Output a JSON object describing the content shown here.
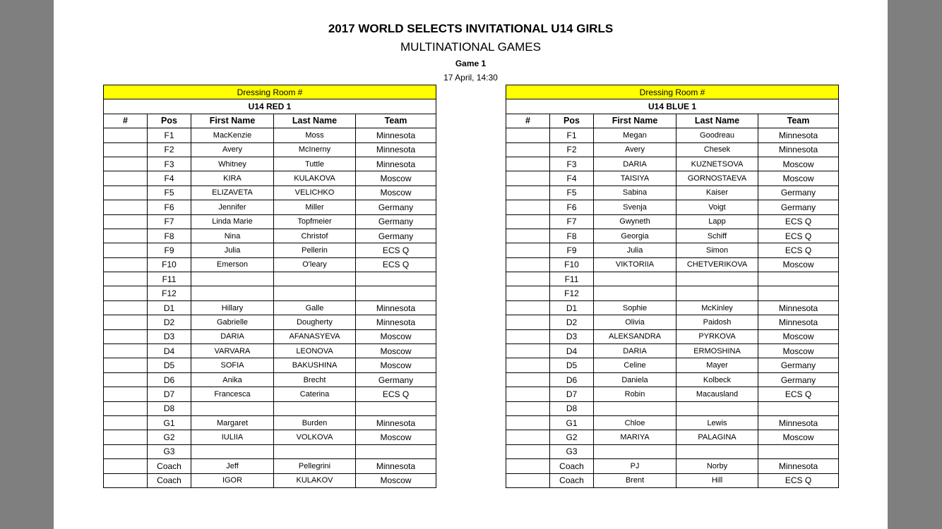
{
  "header": {
    "title": "2017 WORLD SELECTS INVITATIONAL U14 GIRLS",
    "subtitle": "MULTINATIONAL GAMES",
    "game": "Game 1",
    "datetime": "17 April, 14:30"
  },
  "columns": [
    "#",
    "Pos",
    "First Name",
    "Last Name",
    "Team"
  ],
  "rosters": [
    {
      "dressing_room": "Dressing Room #",
      "team": "U14 RED 1",
      "rows": [
        [
          "",
          "F1",
          "MacKenzie",
          "Moss",
          "Minnesota"
        ],
        [
          "",
          "F2",
          "Avery",
          "McInerny",
          "Minnesota"
        ],
        [
          "",
          "F3",
          "Whitney",
          "Tuttle",
          "Minnesota"
        ],
        [
          "",
          "F4",
          "KIRA",
          "KULAKOVA",
          "Moscow"
        ],
        [
          "",
          "F5",
          "ELIZAVETA",
          "VELICHKO",
          "Moscow"
        ],
        [
          "",
          "F6",
          "Jennifer",
          "Miller",
          "Germany"
        ],
        [
          "",
          "F7",
          "Linda Marie",
          "Topfmeier",
          "Germany"
        ],
        [
          "",
          "F8",
          "Nina",
          "Christof",
          "Germany"
        ],
        [
          "",
          "F9",
          "Julia",
          "Pellerin",
          "ECS Q"
        ],
        [
          "",
          "F10",
          "Emerson",
          "O'leary",
          "ECS Q"
        ],
        [
          "",
          "F11",
          "",
          "",
          ""
        ],
        [
          "",
          "F12",
          "",
          "",
          ""
        ],
        [
          "",
          "D1",
          "Hillary",
          "Galle",
          "Minnesota"
        ],
        [
          "",
          "D2",
          "Gabrielle",
          "Dougherty",
          "Minnesota"
        ],
        [
          "",
          "D3",
          "DARIA",
          "AFANASYEVA",
          "Moscow"
        ],
        [
          "",
          "D4",
          "VARVARA",
          "LEONOVA",
          "Moscow"
        ],
        [
          "",
          "D5",
          "SOFIA",
          "BAKUSHINA",
          "Moscow"
        ],
        [
          "",
          "D6",
          "Anika",
          "Brecht",
          "Germany"
        ],
        [
          "",
          "D7",
          "Francesca",
          "Caterina",
          "ECS Q"
        ],
        [
          "",
          "D8",
          "",
          "",
          ""
        ],
        [
          "",
          "G1",
          "Margaret",
          "Burden",
          "Minnesota"
        ],
        [
          "",
          "G2",
          "IULIIA",
          "VOLKOVA",
          "Moscow"
        ],
        [
          "",
          "G3",
          "",
          "",
          ""
        ],
        [
          "",
          "Coach",
          "Jeff",
          "Pellegrini",
          "Minnesota"
        ],
        [
          "",
          "Coach",
          "IGOR",
          "KULAKOV",
          "Moscow"
        ]
      ]
    },
    {
      "dressing_room": "Dressing Room #",
      "team": "U14 BLUE 1",
      "rows": [
        [
          "",
          "F1",
          "Megan",
          "Goodreau",
          "Minnesota"
        ],
        [
          "",
          "F2",
          "Avery",
          "Chesek",
          "Minnesota"
        ],
        [
          "",
          "F3",
          "DARIA",
          "KUZNETSOVA",
          "Moscow"
        ],
        [
          "",
          "F4",
          "TAISIYA",
          "GORNOSTAEVA",
          "Moscow"
        ],
        [
          "",
          "F5",
          "Sabina",
          "Kaiser",
          "Germany"
        ],
        [
          "",
          "F6",
          "Svenja",
          "Voigt",
          "Germany"
        ],
        [
          "",
          "F7",
          "Gwyneth",
          "Lapp",
          "ECS Q"
        ],
        [
          "",
          "F8",
          "Georgia",
          "Schiff",
          "ECS Q"
        ],
        [
          "",
          "F9",
          "Julia",
          "Simon",
          "ECS Q"
        ],
        [
          "",
          "F10",
          "VIKTORIIA",
          "CHETVERIKOVA",
          "Moscow"
        ],
        [
          "",
          "F11",
          "",
          "",
          ""
        ],
        [
          "",
          "F12",
          "",
          "",
          ""
        ],
        [
          "",
          "D1",
          "Sophie",
          "McKinley",
          "Minnesota"
        ],
        [
          "",
          "D2",
          "Olivia",
          "Paidosh",
          "Minnesota"
        ],
        [
          "",
          "D3",
          "ALEKSANDRA",
          "PYRKOVA",
          "Moscow"
        ],
        [
          "",
          "D4",
          "DARIA",
          "ERMOSHINA",
          "Moscow"
        ],
        [
          "",
          "D5",
          "Celine",
          "Mayer",
          "Germany"
        ],
        [
          "",
          "D6",
          "Daniela",
          "Kolbeck",
          "Germany"
        ],
        [
          "",
          "D7",
          "Robin",
          "Macausland",
          "ECS Q"
        ],
        [
          "",
          "D8",
          "",
          "",
          ""
        ],
        [
          "",
          "G1",
          "Chloe",
          "Lewis",
          "Minnesota"
        ],
        [
          "",
          "G2",
          "MARIYA",
          "PALAGINA",
          "Moscow"
        ],
        [
          "",
          "G3",
          "",
          "",
          ""
        ],
        [
          "",
          "Coach",
          "PJ",
          "Norby",
          "Minnesota"
        ],
        [
          "",
          "Coach",
          "Brent",
          "Hill",
          "ECS Q"
        ]
      ]
    }
  ],
  "colors": {
    "highlight": "#ffff00",
    "background": "#7f7f7f"
  }
}
